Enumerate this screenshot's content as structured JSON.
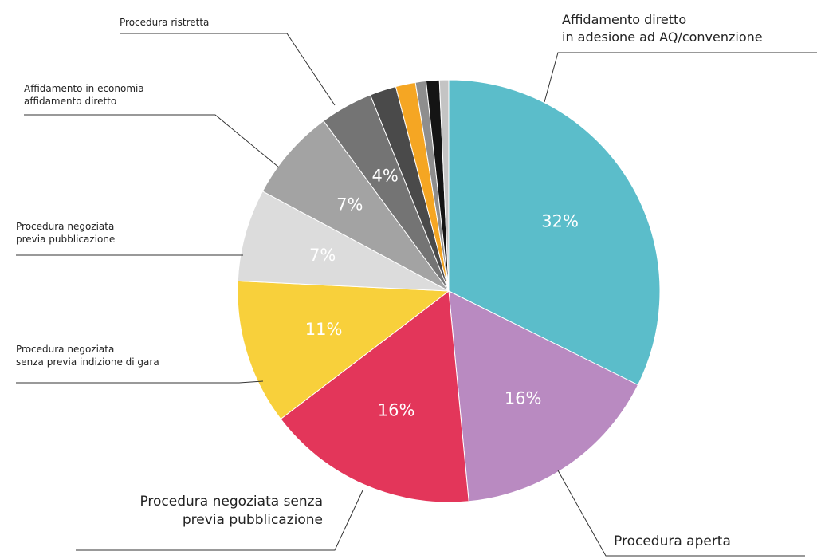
{
  "chart_data": {
    "type": "pie",
    "categories": [
      "Affidamento diretto\nin adesione ad AQ/convenzione",
      "Procedura aperta",
      "Procedura negoziata senza\nprevia pubblicazione",
      "Procedura negoziata\nsenza previa indizione di gara",
      "Procedura negoziata\nprevia pubblicazione",
      "Affidamento in economia\naffidamento diretto",
      "Procedura ristretta",
      null,
      null,
      null,
      null,
      null
    ],
    "values": [
      32,
      16,
      16,
      11,
      7,
      7,
      4,
      2,
      1.5,
      0.8,
      1,
      0.7
    ],
    "value_labels": [
      "32%",
      "16%",
      "16%",
      "11%",
      "7%",
      "7%",
      "4%",
      null,
      null,
      null,
      null,
      null
    ],
    "colors": [
      "#5bbdca",
      "#b98ac1",
      "#e3365a",
      "#f8d03b",
      "#dcdcdc",
      "#a3a3a3",
      "#747474",
      "#4a4a4a",
      "#f5a623",
      "#8e8e8e",
      "#141414",
      "#c4c4c4"
    ]
  }
}
